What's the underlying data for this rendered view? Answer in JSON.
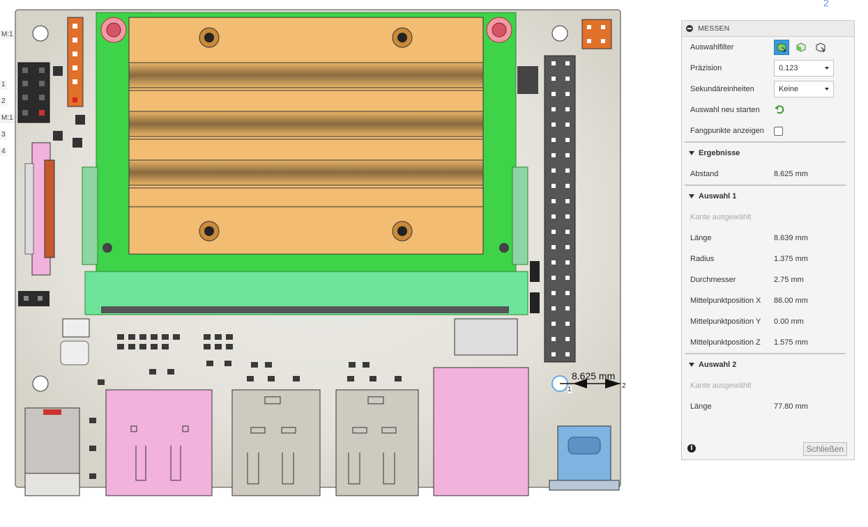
{
  "viewport": {
    "edge_labels": [
      "M:1",
      "1",
      "2",
      "M:1",
      "3",
      "4"
    ],
    "measurement": {
      "value_label": "8.625 mm",
      "point1": "1",
      "point2": "2"
    },
    "corner_number": "2"
  },
  "panel": {
    "title": "MESSEN",
    "rows": {
      "auswahlfilter": "Auswahlfilter",
      "praezision": {
        "label": "Präzision",
        "value": "0.123"
      },
      "sekundaer": {
        "label": "Sekundäreinheiten",
        "value": "Keine"
      },
      "neu_starten": "Auswahl neu starten",
      "fangpunkte": "Fangpunkte anzeigen"
    },
    "ergebnisse": {
      "title": "Ergebnisse",
      "abstand": {
        "label": "Abstand",
        "value": "8.625 mm"
      }
    },
    "auswahl1": {
      "title": "Auswahl 1",
      "note": "Kante ausgewählt",
      "items": [
        {
          "label": "Länge",
          "value": "8.639 mm"
        },
        {
          "label": "Radius",
          "value": "1.375 mm"
        },
        {
          "label": "Durchmesser",
          "value": "2.75 mm"
        },
        {
          "label": "Mittelpunktposition X",
          "value": "86.00 mm"
        },
        {
          "label": "Mittelpunktposition Y",
          "value": "0.00 mm"
        },
        {
          "label": "Mittelpunktposition Z",
          "value": "1.575 mm"
        }
      ]
    },
    "auswahl2": {
      "title": "Auswahl 2",
      "note": "Kante ausgewählt",
      "items": [
        {
          "label": "Länge",
          "value": "77.80 mm"
        }
      ]
    },
    "close_label": "Schließen"
  },
  "colors": {
    "board": "#e9e7e1",
    "pcb_green": "#3fd34a",
    "heatsink": "#f2bd72",
    "pink": "#f1b2dc",
    "usb_blue": "#7fb3e0",
    "accent": "#3a9ad9"
  }
}
